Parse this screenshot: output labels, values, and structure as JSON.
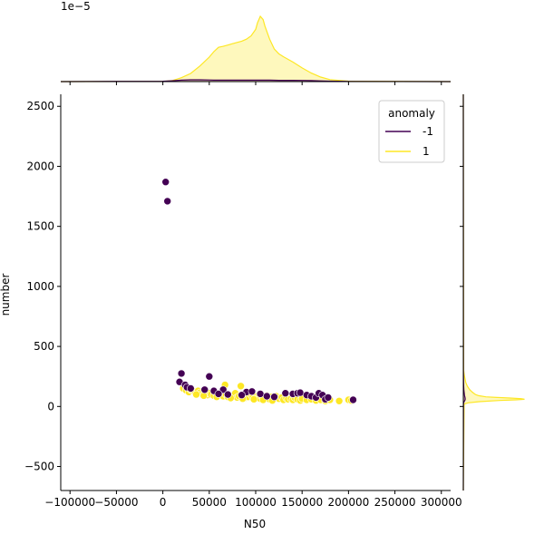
{
  "chart_data": {
    "type": "scatter",
    "xlabel": "N50",
    "ylabel": "number",
    "xlim": [
      -110000,
      310000
    ],
    "ylim": [
      -700,
      2600
    ],
    "xticks": [
      -100000,
      -50000,
      0,
      50000,
      100000,
      150000,
      200000,
      250000,
      300000
    ],
    "xtick_labels": [
      "−100000",
      "−50000",
      "0",
      "50000",
      "100000",
      "150000",
      "200000",
      "250000",
      "300000"
    ],
    "yticks": [
      -500,
      0,
      500,
      1000,
      1500,
      2000,
      2500
    ],
    "ytick_labels": [
      "−500",
      "0",
      "500",
      "1000",
      "1500",
      "2000",
      "2500"
    ],
    "top_marginal_offset_label": "1e−5",
    "legend": {
      "title": "anomaly",
      "placement": "top-right",
      "entries": [
        {
          "label": "-1",
          "color": "#440154"
        },
        {
          "label": "1",
          "color": "#fde725"
        }
      ]
    },
    "series": [
      {
        "name": "1",
        "color": "#fde725",
        "points": [
          [
            22000,
            150
          ],
          [
            25000,
            135
          ],
          [
            28000,
            120
          ],
          [
            30000,
            140
          ],
          [
            33000,
            128
          ],
          [
            35000,
            110
          ],
          [
            38000,
            130
          ],
          [
            40000,
            115
          ],
          [
            42000,
            105
          ],
          [
            45000,
            120
          ],
          [
            48000,
            95
          ],
          [
            50000,
            110
          ],
          [
            52000,
            100
          ],
          [
            55000,
            90
          ],
          [
            57000,
            115
          ],
          [
            60000,
            95
          ],
          [
            62000,
            105
          ],
          [
            65000,
            85
          ],
          [
            67000,
            180
          ],
          [
            68000,
            100
          ],
          [
            70000,
            80
          ],
          [
            72000,
            95
          ],
          [
            75000,
            90
          ],
          [
            78000,
            110
          ],
          [
            80000,
            75
          ],
          [
            82000,
            85
          ],
          [
            84000,
            170
          ],
          [
            85000,
            95
          ],
          [
            88000,
            70
          ],
          [
            90000,
            90
          ],
          [
            92000,
            80
          ],
          [
            95000,
            100
          ],
          [
            97000,
            75
          ],
          [
            100000,
            85
          ],
          [
            102000,
            70
          ],
          [
            104000,
            95
          ],
          [
            105000,
            65
          ],
          [
            107000,
            80
          ],
          [
            110000,
            75
          ],
          [
            112000,
            90
          ],
          [
            115000,
            60
          ],
          [
            117000,
            80
          ],
          [
            120000,
            70
          ],
          [
            122000,
            85
          ],
          [
            125000,
            65
          ],
          [
            128000,
            75
          ],
          [
            130000,
            55
          ],
          [
            133000,
            70
          ],
          [
            135000,
            60
          ],
          [
            138000,
            65
          ],
          [
            140000,
            55
          ],
          [
            142000,
            75
          ],
          [
            145000,
            60
          ],
          [
            148000,
            50
          ],
          [
            150000,
            65
          ],
          [
            155000,
            55
          ],
          [
            160000,
            60
          ],
          [
            165000,
            50
          ],
          [
            170000,
            55
          ],
          [
            175000,
            45
          ],
          [
            180000,
            55
          ],
          [
            190000,
            45
          ],
          [
            200000,
            55
          ],
          [
            203000,
            50
          ],
          [
            36000,
            100
          ],
          [
            44000,
            90
          ],
          [
            58000,
            80
          ],
          [
            73000,
            70
          ],
          [
            86000,
            65
          ],
          [
            98000,
            60
          ],
          [
            108000,
            55
          ],
          [
            118000,
            50
          ]
        ]
      },
      {
        "name": "-1",
        "color": "#440154",
        "points": [
          [
            3000,
            1870
          ],
          [
            5000,
            1710
          ],
          [
            20000,
            275
          ],
          [
            18000,
            205
          ],
          [
            24000,
            180
          ],
          [
            50000,
            250
          ],
          [
            26000,
            160
          ],
          [
            30000,
            150
          ],
          [
            45000,
            140
          ],
          [
            55000,
            130
          ],
          [
            65000,
            140
          ],
          [
            90000,
            120
          ],
          [
            96000,
            125
          ],
          [
            105000,
            105
          ],
          [
            132000,
            110
          ],
          [
            140000,
            105
          ],
          [
            145000,
            110
          ],
          [
            148000,
            115
          ],
          [
            155000,
            95
          ],
          [
            160000,
            85
          ],
          [
            165000,
            75
          ],
          [
            168000,
            110
          ],
          [
            172000,
            95
          ],
          [
            175000,
            60
          ],
          [
            178000,
            75
          ],
          [
            120000,
            80
          ],
          [
            112000,
            85
          ],
          [
            85000,
            95
          ],
          [
            70000,
            100
          ],
          [
            60000,
            105
          ],
          [
            205000,
            55
          ]
        ]
      }
    ],
    "top_marginal": {
      "x": [
        -110000,
        0,
        10000,
        20000,
        30000,
        40000,
        50000,
        55000,
        60000,
        65000,
        70000,
        75000,
        80000,
        85000,
        90000,
        95000,
        100000,
        102000,
        105000,
        108000,
        110000,
        115000,
        120000,
        125000,
        130000,
        140000,
        150000,
        160000,
        170000,
        180000,
        200000,
        310000
      ],
      "density_1": [
        0,
        0.05,
        0.3,
        1.2,
        2.5,
        4.8,
        7.5,
        9.2,
        10.5,
        10.8,
        11.2,
        11.6,
        12.0,
        12.4,
        13.0,
        14.0,
        16.0,
        18.0,
        20.0,
        19.0,
        17.0,
        13.0,
        10.0,
        8.5,
        7.6,
        6.0,
        4.2,
        2.6,
        1.4,
        0.6,
        0.15,
        0
      ],
      "density_neg1": [
        0,
        0.1,
        0.25,
        0.45,
        0.55,
        0.55,
        0.5,
        0.45,
        0.45,
        0.45,
        0.45,
        0.45,
        0.45,
        0.45,
        0.45,
        0.45,
        0.45,
        0.45,
        0.45,
        0.45,
        0.45,
        0.45,
        0.42,
        0.4,
        0.4,
        0.38,
        0.35,
        0.3,
        0.22,
        0.15,
        0.05,
        0
      ]
    },
    "right_marginal": {
      "y": [
        -700,
        20,
        30,
        40,
        50,
        55,
        60,
        65,
        70,
        75,
        80,
        90,
        100,
        120,
        140,
        170,
        200,
        260,
        300,
        2600
      ],
      "density_1": [
        0,
        0.1,
        0.6,
        2.0,
        4.5,
        6.5,
        7.6,
        7.2,
        5.8,
        4.2,
        2.8,
        1.9,
        1.5,
        1.1,
        0.8,
        0.5,
        0.3,
        0.12,
        0.05,
        0
      ],
      "density_neg1": [
        0,
        0.02,
        0.05,
        0.1,
        0.18,
        0.22,
        0.24,
        0.24,
        0.23,
        0.21,
        0.19,
        0.16,
        0.14,
        0.1,
        0.07,
        0.05,
        0.03,
        0.02,
        0.01,
        0
      ]
    }
  }
}
